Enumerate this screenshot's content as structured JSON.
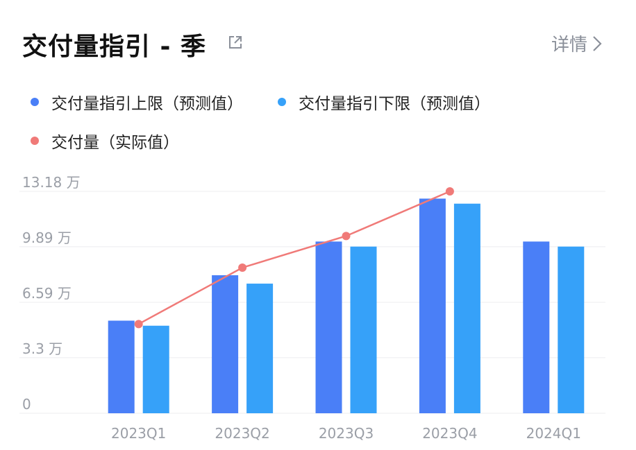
{
  "header": {
    "title": "交付量指引 - 季",
    "details_label": "详情"
  },
  "chart_data": {
    "type": "bar",
    "categories": [
      "2023Q1",
      "2023Q2",
      "2023Q3",
      "2023Q4",
      "2024Q1"
    ],
    "series": [
      {
        "name": "交付量指引上限（预测值）",
        "type": "bar",
        "color": "#4a7ff7",
        "values": [
          5.5,
          8.2,
          10.2,
          12.75,
          10.2
        ]
      },
      {
        "name": "交付量指引下限（预测值）",
        "type": "bar",
        "color": "#36a1f9",
        "values": [
          5.2,
          7.7,
          9.9,
          12.45,
          9.9
        ]
      },
      {
        "name": "交付量（实际值）",
        "type": "line",
        "color": "#f07a78",
        "values": [
          5.3,
          8.65,
          10.53,
          13.18,
          null
        ]
      }
    ],
    "y_ticks": [
      {
        "value": 0,
        "label": "0"
      },
      {
        "value": 3.3,
        "label": "3.3 万"
      },
      {
        "value": 6.59,
        "label": "6.59 万"
      },
      {
        "value": 9.89,
        "label": "9.89 万"
      },
      {
        "value": 13.18,
        "label": "13.18 万"
      }
    ],
    "ylim": [
      0,
      13.18
    ],
    "grid": true,
    "legend_position": "top-left"
  },
  "colors": {
    "grid": "#ececef",
    "tick_text": "#9a9ea6"
  },
  "icons": {
    "share": "external-link-icon",
    "details": "chevron-right-icon"
  }
}
